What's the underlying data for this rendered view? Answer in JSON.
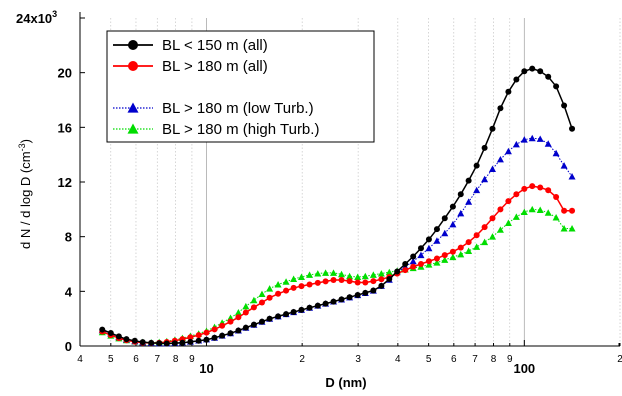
{
  "chart_data": {
    "type": "line",
    "x_scale": "log",
    "xlim": [
      4,
      200
    ],
    "ylim": [
      0,
      24000
    ],
    "xlabel": "D (nm)",
    "ylabel": "d N / d log D (cm",
    "ylabel_superscript": "-3",
    "ylabel_close": ")",
    "y_ticks": [
      {
        "value": 0,
        "label": "0"
      },
      {
        "value": 4000,
        "label": "4"
      },
      {
        "value": 8000,
        "label": "8"
      },
      {
        "value": 12000,
        "label": "12"
      },
      {
        "value": 16000,
        "label": "16"
      },
      {
        "value": 20000,
        "label": "20"
      }
    ],
    "y_top_label": {
      "value": 24000,
      "base": "24x10",
      "exp": "3"
    },
    "x_ticks": [
      {
        "value": 4,
        "label": "4",
        "major": false
      },
      {
        "value": 5,
        "label": "5",
        "major": false
      },
      {
        "value": 6,
        "label": "6",
        "major": false
      },
      {
        "value": 7,
        "label": "7",
        "major": false
      },
      {
        "value": 8,
        "label": "8",
        "major": false
      },
      {
        "value": 9,
        "label": "9",
        "major": false
      },
      {
        "value": 10,
        "label": "10",
        "major": true
      },
      {
        "value": 20,
        "label": "2",
        "major": false
      },
      {
        "value": 30,
        "label": "3",
        "major": false
      },
      {
        "value": 40,
        "label": "4",
        "major": false
      },
      {
        "value": 50,
        "label": "5",
        "major": false
      },
      {
        "value": 60,
        "label": "6",
        "major": false
      },
      {
        "value": 70,
        "label": "7",
        "major": false
      },
      {
        "value": 80,
        "label": "8",
        "major": false
      },
      {
        "value": 90,
        "label": "9",
        "major": false
      },
      {
        "value": 100,
        "label": "100",
        "major": true
      },
      {
        "value": 200,
        "label": "2",
        "major": false
      }
    ],
    "grid": "vertical-dotted",
    "legend_position": "top-left",
    "series": [
      {
        "name": "BL < 150 m (all)",
        "color": "#000000",
        "marker": "circle",
        "line": "solid",
        "x": [
          4.7,
          5.0,
          5.3,
          5.6,
          5.95,
          6.3,
          6.7,
          7.1,
          7.5,
          7.95,
          8.4,
          8.9,
          9.45,
          10.0,
          10.6,
          11.2,
          11.9,
          12.6,
          13.3,
          14.1,
          14.95,
          15.8,
          16.8,
          17.8,
          18.8,
          19.9,
          21.1,
          22.4,
          23.7,
          25.1,
          26.6,
          28.2,
          29.9,
          31.6,
          33.5,
          35.5,
          37.6,
          39.8,
          42.2,
          44.7,
          47.3,
          50.1,
          53.1,
          56.2,
          59.6,
          63.1,
          66.8,
          70.8,
          75.0,
          79.4,
          84.1,
          89.1,
          94.4,
          100.0,
          105.9,
          112.2,
          118.9,
          125.9,
          133.4,
          141.3
        ],
        "y": [
          1200,
          950,
          700,
          500,
          380,
          280,
          230,
          200,
          180,
          200,
          240,
          300,
          380,
          460,
          600,
          760,
          930,
          1130,
          1340,
          1560,
          1780,
          1990,
          2170,
          2330,
          2490,
          2640,
          2800,
          2950,
          3100,
          3250,
          3410,
          3570,
          3730,
          3890,
          4060,
          4400,
          4900,
          5450,
          6000,
          6550,
          7150,
          7800,
          8550,
          9350,
          10200,
          11100,
          12100,
          13200,
          14500,
          15900,
          17400,
          18600,
          19500,
          20100,
          20300,
          20100,
          19700,
          19000,
          17600,
          15900
        ]
      },
      {
        "name": "BL > 180 m (all)",
        "color": "#ff0000",
        "marker": "circle",
        "line": "solid",
        "x": [
          4.7,
          5.0,
          5.3,
          5.6,
          5.95,
          6.3,
          6.7,
          7.1,
          7.5,
          7.95,
          8.4,
          8.9,
          9.45,
          10.0,
          10.6,
          11.2,
          11.9,
          12.6,
          13.3,
          14.1,
          14.95,
          15.8,
          16.8,
          17.8,
          18.8,
          19.9,
          21.1,
          22.4,
          23.7,
          25.1,
          26.6,
          28.2,
          29.9,
          31.6,
          33.5,
          35.5,
          37.6,
          39.8,
          42.2,
          44.7,
          47.3,
          50.1,
          53.1,
          56.2,
          59.6,
          63.1,
          66.8,
          70.8,
          75.0,
          79.4,
          84.1,
          89.1,
          94.4,
          100.0,
          105.9,
          112.2,
          118.9,
          125.9,
          133.4,
          141.3
        ],
        "y": [
          1050,
          800,
          580,
          420,
          310,
          250,
          220,
          230,
          290,
          380,
          500,
          640,
          800,
          980,
          1220,
          1480,
          1780,
          2100,
          2450,
          2830,
          3180,
          3530,
          3820,
          4050,
          4250,
          4380,
          4500,
          4620,
          4730,
          4830,
          4830,
          4750,
          4650,
          4650,
          4750,
          4880,
          5050,
          5300,
          5550,
          5800,
          6000,
          6200,
          6400,
          6650,
          6900,
          7200,
          7600,
          8100,
          8700,
          9350,
          10000,
          10600,
          11100,
          11500,
          11700,
          11600,
          11400,
          10900,
          9900,
          9900
        ]
      },
      {
        "name": "BL > 180 m (low Turb.)",
        "color": "#0000cc",
        "marker": "triangle",
        "line": "dotted",
        "x": [
          4.7,
          5.0,
          5.3,
          5.6,
          5.95,
          6.3,
          6.7,
          7.1,
          7.5,
          7.95,
          8.4,
          8.9,
          9.45,
          10.0,
          10.6,
          11.2,
          11.9,
          12.6,
          13.3,
          14.1,
          14.95,
          15.8,
          16.8,
          17.8,
          18.8,
          19.9,
          21.1,
          22.4,
          23.7,
          25.1,
          26.6,
          28.2,
          29.9,
          31.6,
          33.5,
          35.5,
          37.6,
          39.8,
          42.2,
          44.7,
          47.3,
          50.1,
          53.1,
          56.2,
          59.6,
          63.1,
          66.8,
          70.8,
          75.0,
          79.4,
          84.1,
          89.1,
          94.4,
          100.0,
          105.9,
          112.2,
          118.9,
          125.9,
          133.4,
          141.3
        ],
        "y": [
          1150,
          900,
          650,
          470,
          350,
          260,
          220,
          200,
          190,
          220,
          260,
          320,
          400,
          480,
          600,
          760,
          930,
          1130,
          1330,
          1550,
          1770,
          1990,
          2170,
          2330,
          2480,
          2640,
          2800,
          2950,
          3100,
          3250,
          3400,
          3560,
          3720,
          3880,
          4050,
          4400,
          4850,
          5400,
          5800,
          6200,
          6650,
          7150,
          7700,
          8250,
          8900,
          9700,
          10550,
          11400,
          12200,
          12950,
          13650,
          14250,
          14750,
          15100,
          15200,
          15150,
          14800,
          14100,
          13200,
          12400
        ]
      },
      {
        "name": "BL > 180 m (high Turb.)",
        "color": "#00dd00",
        "marker": "triangle",
        "line": "dotted",
        "x": [
          4.7,
          5.0,
          5.3,
          5.6,
          5.95,
          6.3,
          6.7,
          7.1,
          7.5,
          7.95,
          8.4,
          8.9,
          9.45,
          10.0,
          10.6,
          11.2,
          11.9,
          12.6,
          13.3,
          14.1,
          14.95,
          15.8,
          16.8,
          17.8,
          18.8,
          19.9,
          21.1,
          22.4,
          23.7,
          25.1,
          26.6,
          28.2,
          29.9,
          31.6,
          33.5,
          35.5,
          37.6,
          39.8,
          42.2,
          44.7,
          47.3,
          50.1,
          53.1,
          56.2,
          59.6,
          63.1,
          66.8,
          70.8,
          75.0,
          79.4,
          84.1,
          89.1,
          94.4,
          100.0,
          105.9,
          112.2,
          118.9,
          125.9,
          133.4,
          141.3
        ],
        "y": [
          1000,
          760,
          560,
          420,
          330,
          280,
          260,
          280,
          350,
          450,
          580,
          730,
          900,
          1100,
          1380,
          1700,
          2050,
          2450,
          2900,
          3350,
          3800,
          4200,
          4500,
          4700,
          4900,
          5050,
          5200,
          5300,
          5350,
          5350,
          5250,
          5100,
          5050,
          5100,
          5200,
          5300,
          5400,
          5500,
          5600,
          5700,
          5800,
          5950,
          6100,
          6300,
          6500,
          6700,
          6950,
          7250,
          7600,
          8000,
          8500,
          9000,
          9450,
          9800,
          10000,
          9950,
          9750,
          9400,
          8600,
          8600
        ]
      }
    ]
  }
}
